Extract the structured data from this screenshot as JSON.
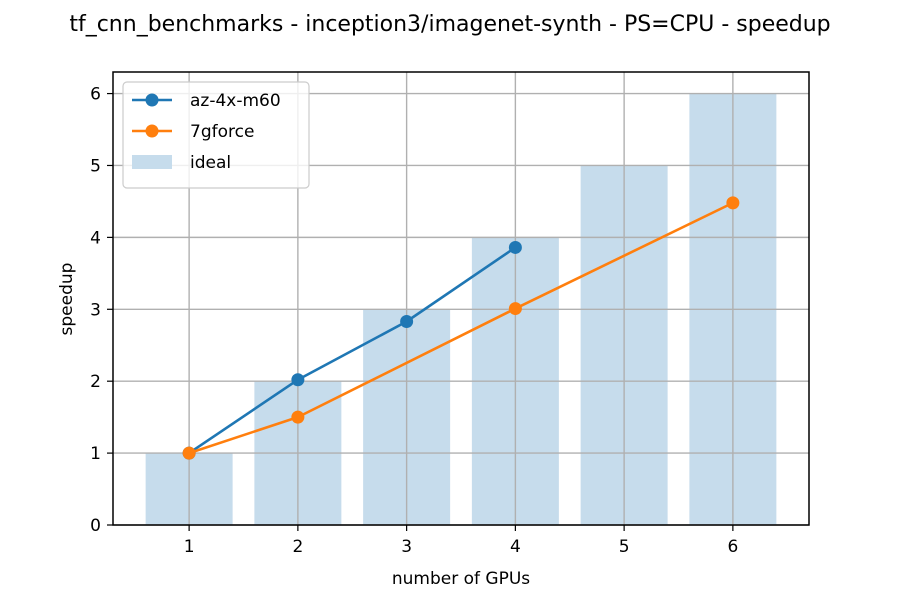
{
  "chart_data": {
    "type": "line",
    "title": "tf_cnn_benchmarks - inception3/imagenet-synth - PS=CPU - speedup",
    "xlabel": "number of GPUs",
    "ylabel": "speedup",
    "x": [
      1,
      2,
      3,
      4,
      5,
      6
    ],
    "x_tick_labels": [
      "1",
      "2",
      "3",
      "4",
      "5",
      "6"
    ],
    "y_ticks": [
      0,
      1,
      2,
      3,
      4,
      5,
      6
    ],
    "y_tick_labels": [
      "0",
      "1",
      "2",
      "3",
      "4",
      "5",
      "6"
    ],
    "xlim": [
      0.3,
      6.7
    ],
    "ylim": [
      0,
      6.3
    ],
    "grid": true,
    "legend_position": "top-left",
    "series": [
      {
        "name": "az-4x-m60",
        "type": "line",
        "color": "#1f77b4",
        "x": [
          1,
          2,
          3,
          4
        ],
        "y": [
          1.0,
          2.02,
          2.83,
          3.86
        ]
      },
      {
        "name": "7gforce",
        "type": "line",
        "color": "#ff7f0e",
        "x": [
          1,
          2,
          4,
          6
        ],
        "y": [
          1.0,
          1.5,
          3.01,
          4.48
        ]
      },
      {
        "name": "ideal",
        "type": "bar",
        "color": "#c6dcec",
        "x": [
          1,
          2,
          3,
          4,
          5,
          6
        ],
        "y": [
          1,
          2,
          3,
          4,
          5,
          6
        ]
      }
    ]
  }
}
